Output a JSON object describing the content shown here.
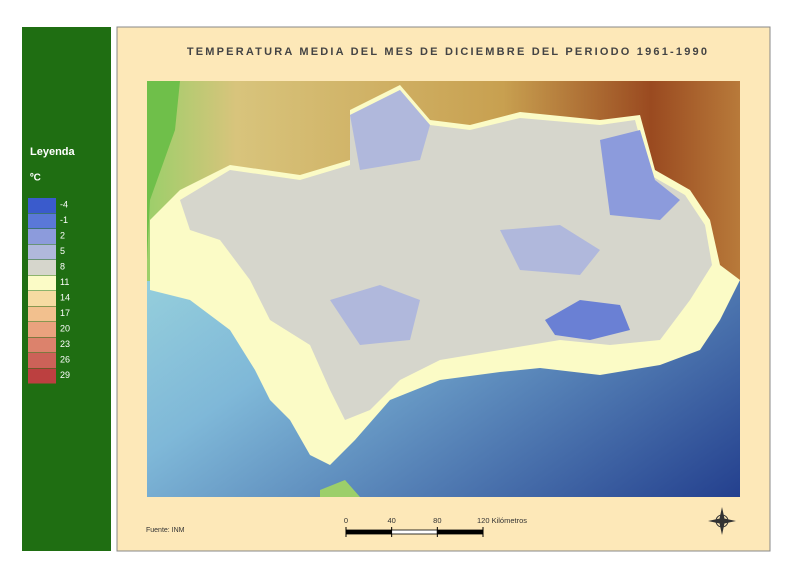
{
  "title": "TEMPERATURA MEDIA DEL MES DE DICIEMBRE DEL PERIODO 1961-1990",
  "legend": {
    "title": "Leyenda",
    "unit": "ºC",
    "items": [
      {
        "value": -4,
        "color": "#3a5bcc"
      },
      {
        "value": -1,
        "color": "#5a78d8"
      },
      {
        "value": 2,
        "color": "#8c9bdc"
      },
      {
        "value": 5,
        "color": "#b0b8dc"
      },
      {
        "value": 8,
        "color": "#d6d6cc"
      },
      {
        "value": 11,
        "color": "#fbfbc6"
      },
      {
        "value": 14,
        "color": "#f6dba2"
      },
      {
        "value": 17,
        "color": "#f2c08e"
      },
      {
        "value": 20,
        "color": "#eaa27e"
      },
      {
        "value": 23,
        "color": "#dc826c"
      },
      {
        "value": 26,
        "color": "#cc6258"
      },
      {
        "value": 29,
        "color": "#bc4040"
      }
    ]
  },
  "scale": {
    "ticks": [
      0,
      40,
      80,
      {
        "value": 120,
        "label": "120 Kilómetros"
      }
    ]
  },
  "source": "Fuente: INM"
}
